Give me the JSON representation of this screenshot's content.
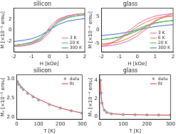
{
  "chart_data": [
    {
      "type": "scatter",
      "title": "silicon",
      "x_label": "H [kOe]",
      "y_label": "M [×10⁻⁵ emu]",
      "xlim": [
        -2,
        2
      ],
      "xticks": [
        -2,
        -1,
        0,
        1,
        2
      ],
      "ylim": [
        -4,
        4
      ],
      "yticks": [
        -2,
        0,
        2
      ],
      "grid": false,
      "legend": "lower right",
      "series": [
        {
          "name": "3 K",
          "color": "#e0609a",
          "line_style": "solid",
          "x": [
            -2,
            -1.5,
            -1,
            -0.5,
            -0.25,
            0,
            0.25,
            0.5,
            1,
            1.5,
            2,
            2,
            1.5,
            1,
            0.5,
            0.25,
            0,
            -0.25,
            -0.5,
            -1,
            -1.5,
            -2
          ],
          "values": [
            -3.0,
            -2.9,
            -2.6,
            -2.0,
            -1.3,
            -0.5,
            0.9,
            1.8,
            2.5,
            2.85,
            3.0,
            3.0,
            2.9,
            2.6,
            2.0,
            1.3,
            0.5,
            -0.9,
            -1.8,
            -2.5,
            -2.85,
            -3.0
          ]
        },
        {
          "name": "20 K",
          "color": "#4caf50",
          "line_style": "solid",
          "x": [
            -2,
            -1.5,
            -1,
            -0.5,
            0,
            0.5,
            1,
            1.5,
            2,
            2,
            1.5,
            1,
            0.5,
            0,
            -0.5,
            -1,
            -1.5,
            -2
          ],
          "values": [
            -2.8,
            -2.6,
            -2.3,
            -1.6,
            -0.2,
            1.4,
            2.2,
            2.6,
            2.8,
            2.8,
            2.6,
            2.3,
            1.6,
            0.2,
            -1.4,
            -2.2,
            -2.6,
            -2.8
          ]
        },
        {
          "name": "300 K",
          "color": "#3a5fcd",
          "line_style": "solid",
          "x": [
            -2,
            -1.5,
            -1,
            -0.5,
            0,
            0.5,
            1,
            1.5,
            2
          ],
          "values": [
            -2.1,
            -1.9,
            -1.6,
            -1.0,
            0,
            1.0,
            1.6,
            1.9,
            2.1
          ]
        }
      ]
    },
    {
      "type": "scatter",
      "title": "glass",
      "x_label": "H [kOe]",
      "y_label": "M [×10⁻⁴ emu]",
      "xlim": [
        -2,
        2
      ],
      "xticks": [
        -2,
        -1,
        0,
        1,
        2
      ],
      "ylim": [
        -8,
        8
      ],
      "yticks": [
        -5,
        0,
        5
      ],
      "grid": false,
      "legend": "lower right",
      "series": [
        {
          "name": "3 K",
          "color": "#e0609a",
          "line_style": "solid",
          "x": [
            -2,
            -1.5,
            -1,
            -0.5,
            0,
            0.25,
            0.5,
            0.75,
            1,
            1.5,
            2,
            2,
            1.5,
            1,
            0.5,
            0,
            -0.25,
            -0.5,
            -0.75,
            -1,
            -1.5,
            -2
          ],
          "values": [
            -6.0,
            -5.7,
            -5.1,
            -4.0,
            -2.2,
            -0.8,
            0.3,
            1.8,
            3.2,
            5.0,
            6.0,
            6.0,
            5.7,
            5.1,
            4.0,
            2.2,
            0.8,
            -0.3,
            -1.8,
            -3.2,
            -5.0,
            -6.0
          ]
        },
        {
          "name": "6 K",
          "color": "#e8743b",
          "line_style": "solid",
          "x": [
            -2,
            -1.5,
            -1,
            -0.5,
            0,
            0.3,
            0.5,
            1,
            1.5,
            2,
            2,
            1.5,
            1,
            0.5,
            0,
            -0.3,
            -0.5,
            -1,
            -1.5,
            -2
          ],
          "values": [
            -5.2,
            -4.9,
            -4.3,
            -3.0,
            -1.2,
            0.2,
            1.2,
            3.5,
            4.7,
            5.2,
            5.2,
            4.9,
            4.3,
            3.0,
            1.2,
            -0.2,
            -1.2,
            -3.5,
            -4.7,
            -5.2
          ]
        },
        {
          "name": "20 K",
          "color": "#4caf50",
          "line_style": "solid",
          "x": [
            -2,
            -1.5,
            -1,
            -0.5,
            0,
            0.5,
            1,
            1.5,
            2,
            2,
            1.5,
            1,
            0.5,
            0,
            -0.5,
            -1,
            -1.5,
            -2
          ],
          "values": [
            -3.5,
            -3.2,
            -2.7,
            -1.7,
            -0.3,
            1.4,
            2.5,
            3.1,
            3.5,
            3.5,
            3.2,
            2.7,
            1.7,
            0.3,
            -1.4,
            -2.5,
            -3.1,
            -3.5
          ]
        },
        {
          "name": "300 K",
          "color": "#3a5fcd",
          "line_style": "solid",
          "x": [
            -2,
            -1.5,
            -1,
            -0.5,
            0,
            0.5,
            1,
            1.5,
            2
          ],
          "values": [
            -2.0,
            -1.7,
            -1.3,
            -0.7,
            0,
            0.7,
            1.3,
            1.7,
            2.0
          ]
        }
      ]
    },
    {
      "type": "scatter",
      "title": "silicon",
      "x_label": "T [K]",
      "y_label": "Mₛ [×10⁻⁵ emu]",
      "xlim": [
        0,
        300
      ],
      "xticks": [
        0,
        100,
        200,
        300
      ],
      "ylim": [
        1.95,
        3.1
      ],
      "yticks": [
        {
          "value": 2,
          "label": "2.0"
        },
        2.5,
        {
          "value": 3,
          "label": "3.0"
        }
      ],
      "grid": false,
      "legend": "upper right",
      "series": [
        {
          "name": "data",
          "color": "#999999",
          "marker": "circle",
          "x": [
            3,
            10,
            20,
            30,
            50,
            75,
            100,
            150,
            200,
            250,
            300
          ],
          "values": [
            2.92,
            2.85,
            2.78,
            2.72,
            2.62,
            2.53,
            2.45,
            2.33,
            2.24,
            2.17,
            2.1
          ]
        },
        {
          "name": "fit",
          "color": "#d62728",
          "line_style": "solid",
          "x": [
            3,
            10,
            20,
            40,
            60,
            80,
            100,
            150,
            200,
            250,
            300
          ],
          "values": [
            2.93,
            2.86,
            2.79,
            2.69,
            2.6,
            2.53,
            2.47,
            2.34,
            2.24,
            2.17,
            2.11
          ]
        }
      ]
    },
    {
      "type": "scatter",
      "title": "glass",
      "x_label": "T [K]",
      "y_label": "Mₛ [×10⁻⁴ emu]",
      "xlim": [
        0,
        300
      ],
      "xticks": [
        0,
        100,
        200,
        300
      ],
      "ylim": [
        -0.3,
        4.6
      ],
      "yticks": [
        0,
        2,
        4
      ],
      "grid": false,
      "legend": "upper right",
      "series": [
        {
          "name": "data",
          "color": "#999999",
          "marker": "circle",
          "x": [
            3,
            6,
            10,
            20,
            30,
            50,
            100,
            150,
            200,
            250,
            300
          ],
          "values": [
            4.0,
            2.6,
            1.5,
            0.7,
            0.45,
            0.3,
            0.22,
            0.2,
            0.18,
            0.17,
            0.16
          ]
        },
        {
          "name": "fit",
          "color": "#d62728",
          "line_style": "solid",
          "x": [
            3,
            5,
            7,
            10,
            15,
            20,
            30,
            50,
            100,
            200,
            300
          ],
          "values": [
            4.0,
            3.0,
            2.2,
            1.55,
            1.0,
            0.72,
            0.46,
            0.31,
            0.23,
            0.18,
            0.16
          ]
        }
      ]
    }
  ]
}
